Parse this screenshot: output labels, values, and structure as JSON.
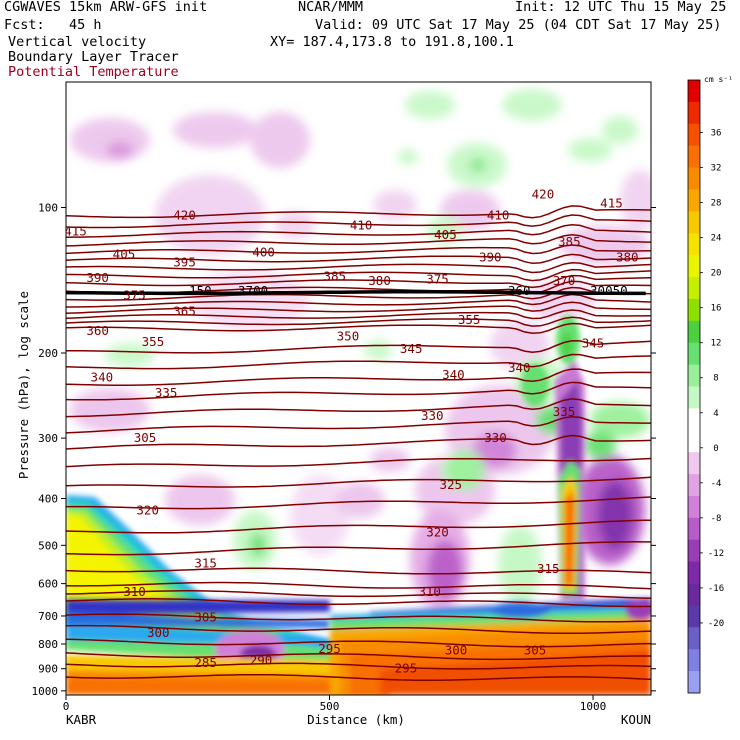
{
  "header": {
    "line1_left": "CGWAVES 15km ARW-GFS init",
    "line1_center": "NCAR/MMM",
    "line1_right": "Init: 12 UTC Thu 15 May 25",
    "line2_left": "Fcst:   45 h",
    "line2_right": "Valid: 09 UTC Sat 17 May 25 (04 CDT Sat 17 May 25)",
    "line3_left": "Vertical velocity",
    "line3_right": "XY= 187.4,173.8 to 191.8,100.1",
    "line4_left": "Boundary Layer Tracer",
    "line5_left": "Potential Temperature",
    "line5_color": "#a0001e"
  },
  "chart_data": {
    "type": "heatmap",
    "xlabel": "Distance (km)",
    "ylabel": "Pressure (hPa), log scale",
    "x_ticks": [
      "0",
      "500",
      "1000"
    ],
    "x_tick_values": [
      0,
      500,
      1000
    ],
    "xlim": [
      0,
      1110
    ],
    "y_ticks": [
      "100",
      "200",
      "300",
      "400",
      "500",
      "600",
      "700",
      "800",
      "900",
      "1000"
    ],
    "y_tick_values": [
      100,
      200,
      300,
      400,
      500,
      600,
      700,
      800,
      900,
      1000
    ],
    "ylim": [
      1020,
      55
    ],
    "y_scale": "log",
    "left_station": "KABR",
    "right_station": "KOUN",
    "colorbar": {
      "unit": "cm s⁻¹",
      "tick_labels": [
        "36",
        "32",
        "28",
        "24",
        "20",
        "16",
        "12",
        "8",
        "4",
        "0",
        "-4",
        "-8",
        "-12",
        "-16",
        "-20"
      ],
      "tick_values": [
        36,
        32,
        28,
        24,
        20,
        16,
        12,
        8,
        4,
        0,
        -4,
        -8,
        -12,
        -16,
        -20
      ],
      "colors": [
        "#e00000",
        "#ee2a00",
        "#f55000",
        "#f87000",
        "#f88c00",
        "#f8a800",
        "#f8c800",
        "#f4e200",
        "#e8f400",
        "#c4f000",
        "#8ee000",
        "#4cd040",
        "#66e070",
        "#9af09a",
        "#c4f8c4",
        "#ffffff",
        "#ffffff",
        "#f0c8f0",
        "#e0a4e4",
        "#d080d8",
        "#b85ac8",
        "#9a3cb4",
        "#7e2aa8",
        "#6a2a9e",
        "#5a3aa8",
        "#6a60c4",
        "#8080e0",
        "#9aa0f0"
      ]
    },
    "potential_temperature_labels": [
      {
        "label": "415",
        "x": 18,
        "p": 112
      },
      {
        "label": "420",
        "x": 225,
        "p": 104
      },
      {
        "label": "410",
        "x": 560,
        "p": 109
      },
      {
        "label": "410",
        "x": 820,
        "p": 104
      },
      {
        "label": "420",
        "x": 905,
        "p": 94
      },
      {
        "label": "415",
        "x": 1035,
        "p": 98
      },
      {
        "label": "405",
        "x": 110,
        "p": 125
      },
      {
        "label": "395",
        "x": 225,
        "p": 130
      },
      {
        "label": "400",
        "x": 375,
        "p": 124
      },
      {
        "label": "405",
        "x": 720,
        "p": 114
      },
      {
        "label": "390",
        "x": 805,
        "p": 127
      },
      {
        "label": "385",
        "x": 955,
        "p": 118
      },
      {
        "label": "380",
        "x": 1065,
        "p": 127
      },
      {
        "label": "390",
        "x": 60,
        "p": 140
      },
      {
        "label": "375",
        "x": 130,
        "p": 152
      },
      {
        "label": "365",
        "x": 225,
        "p": 164
      },
      {
        "label": "385",
        "x": 510,
        "p": 139
      },
      {
        "label": "380",
        "x": 595,
        "p": 142
      },
      {
        "label": "375",
        "x": 705,
        "p": 141
      },
      {
        "label": "370",
        "x": 945,
        "p": 142
      },
      {
        "label": "360",
        "x": 60,
        "p": 180
      },
      {
        "label": "355",
        "x": 165,
        "p": 190
      },
      {
        "label": "350",
        "x": 535,
        "p": 185
      },
      {
        "label": "345",
        "x": 655,
        "p": 196
      },
      {
        "label": "355",
        "x": 765,
        "p": 171
      },
      {
        "label": "345",
        "x": 1000,
        "p": 191
      },
      {
        "label": "340",
        "x": 68,
        "p": 225
      },
      {
        "label": "335",
        "x": 190,
        "p": 242
      },
      {
        "label": "340",
        "x": 735,
        "p": 222
      },
      {
        "label": "340",
        "x": 860,
        "p": 215
      },
      {
        "label": "305",
        "x": 150,
        "p": 300
      },
      {
        "label": "330",
        "x": 695,
        "p": 270
      },
      {
        "label": "330",
        "x": 815,
        "p": 300
      },
      {
        "label": "335",
        "x": 945,
        "p": 265
      },
      {
        "label": "320",
        "x": 155,
        "p": 424
      },
      {
        "label": "325",
        "x": 730,
        "p": 375
      },
      {
        "label": "320",
        "x": 705,
        "p": 470
      },
      {
        "label": "315",
        "x": 265,
        "p": 545
      },
      {
        "label": "315",
        "x": 915,
        "p": 560
      },
      {
        "label": "310",
        "x": 130,
        "p": 625
      },
      {
        "label": "310",
        "x": 690,
        "p": 625
      },
      {
        "label": "305",
        "x": 265,
        "p": 705
      },
      {
        "label": "300",
        "x": 175,
        "p": 760
      },
      {
        "label": "300",
        "x": 740,
        "p": 825
      },
      {
        "label": "305",
        "x": 890,
        "p": 825
      },
      {
        "label": "295",
        "x": 500,
        "p": 820
      },
      {
        "label": "295",
        "x": 645,
        "p": 900
      },
      {
        "label": "290",
        "x": 370,
        "p": 865
      },
      {
        "label": "285",
        "x": 265,
        "p": 875
      }
    ],
    "tropopause_labels": [
      {
        "label": "150",
        "x": 255,
        "p": 149
      },
      {
        "label": "3700",
        "x": 355,
        "p": 149
      },
      {
        "label": "360",
        "x": 860,
        "p": 149
      },
      {
        "label": "30050",
        "x": 1030,
        "p": 149
      }
    ]
  }
}
